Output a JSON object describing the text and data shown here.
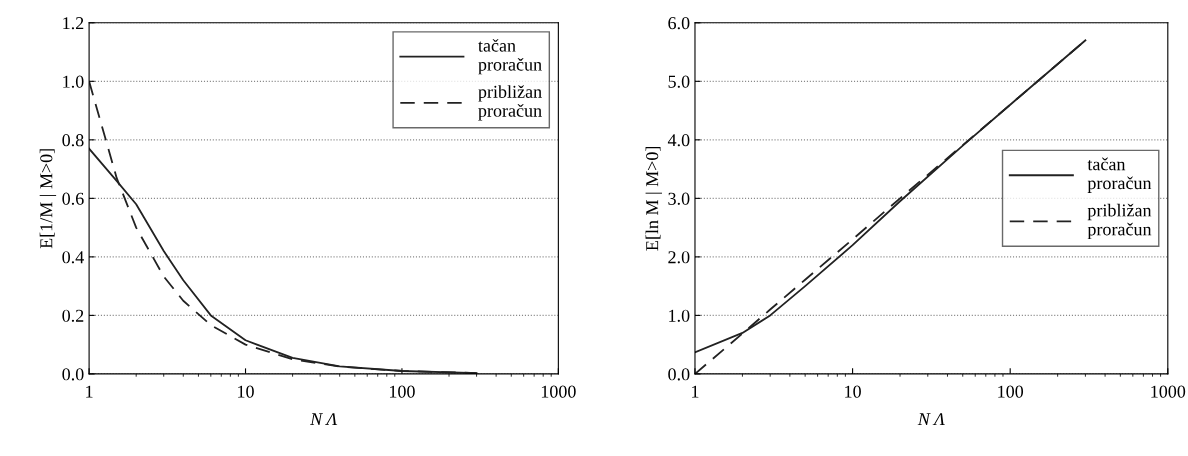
{
  "chart_data": [
    {
      "type": "line",
      "xlabel": "N Λ",
      "ylabel": "E[1/M | M>0]",
      "log": "x",
      "grid": "y",
      "legend": "top right",
      "xlim": [
        1,
        1000
      ],
      "xticks": [
        1,
        10,
        100,
        1000
      ],
      "ylim": [
        0,
        1.2
      ],
      "yticks": [
        {
          "value": 0,
          "label": "0.0"
        },
        {
          "value": 0.2,
          "label": "0.2"
        },
        {
          "value": 0.4,
          "label": "0.4"
        },
        {
          "value": 0.6,
          "label": "0.6"
        },
        {
          "value": 0.8,
          "label": "0.8"
        },
        {
          "value": 1.0,
          "label": "1.0"
        },
        {
          "value": 1.2,
          "label": "1.2"
        }
      ],
      "series": [
        {
          "name": "tačan\nproračun",
          "color": "#222222",
          "line_style": "solid",
          "x": [
            1,
            1.5,
            2,
            3,
            4,
            6,
            10,
            20,
            40,
            100,
            300
          ],
          "values": [
            0.77,
            0.66,
            0.58,
            0.42,
            0.32,
            0.2,
            0.115,
            0.055,
            0.026,
            0.01,
            0.003
          ]
        },
        {
          "name": "približan\nproračun",
          "color": "#222222",
          "line_style": "dashed",
          "x": [
            1,
            1.5,
            2,
            3,
            4,
            6,
            10,
            20,
            40,
            100,
            300
          ],
          "values": [
            1.0,
            0.67,
            0.5,
            0.333,
            0.25,
            0.167,
            0.1,
            0.05,
            0.025,
            0.01,
            0.003
          ]
        }
      ]
    },
    {
      "type": "line",
      "xlabel": "N Λ",
      "ylabel": "E[ln M | M>0]",
      "log": "x",
      "grid": "y",
      "legend": "right",
      "xlim": [
        1,
        1000
      ],
      "xticks": [
        1,
        10,
        100,
        1000
      ],
      "ylim": [
        0,
        6
      ],
      "yticks": [
        {
          "value": 0,
          "label": "0.0"
        },
        {
          "value": 1,
          "label": "1.0"
        },
        {
          "value": 2,
          "label": "2.0"
        },
        {
          "value": 3,
          "label": "3.0"
        },
        {
          "value": 4,
          "label": "4.0"
        },
        {
          "value": 5,
          "label": "5.0"
        },
        {
          "value": 6,
          "label": "6.0"
        }
      ],
      "series": [
        {
          "name": "tačan\nproračun",
          "color": "#222222",
          "line_style": "solid",
          "x": [
            1,
            2,
            3,
            5,
            10,
            20,
            50,
            100,
            300
          ],
          "values": [
            0.37,
            0.7,
            1.0,
            1.5,
            2.2,
            2.95,
            3.9,
            4.6,
            5.7
          ]
        },
        {
          "name": "približan\nproračun",
          "color": "#222222",
          "line_style": "dashed",
          "x": [
            1,
            2,
            3,
            5,
            10,
            20,
            50,
            100,
            300
          ],
          "values": [
            0,
            0.69,
            1.1,
            1.61,
            2.3,
            3.0,
            3.91,
            4.6,
            5.7
          ]
        }
      ]
    }
  ]
}
